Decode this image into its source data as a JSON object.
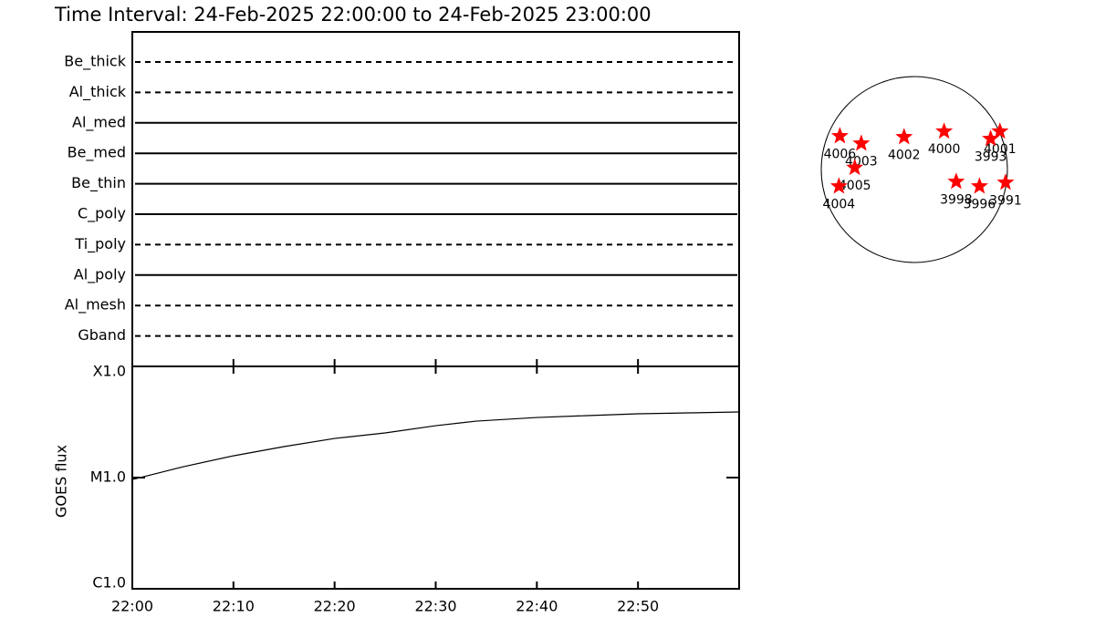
{
  "chart_data": [
    {
      "type": "timeline",
      "title": "Time Interval: 24-Feb-2025 22:00:00 to 24-Feb-2025 23:00:00",
      "filters": [
        {
          "name": "Be_thick",
          "style": "dashed"
        },
        {
          "name": "Al_thick",
          "style": "dashed"
        },
        {
          "name": "Al_med",
          "style": "solid"
        },
        {
          "name": "Be_med",
          "style": "solid"
        },
        {
          "name": "Be_thin",
          "style": "solid"
        },
        {
          "name": "C_poly",
          "style": "solid"
        },
        {
          "name": "Ti_poly",
          "style": "dashed"
        },
        {
          "name": "Al_poly",
          "style": "solid"
        },
        {
          "name": "Al_mesh",
          "style": "dashed"
        },
        {
          "name": "Gband",
          "style": "dashed"
        }
      ]
    },
    {
      "type": "line",
      "y_label": "GOES flux",
      "log_y": true,
      "color": "#000000",
      "x": [
        "22:00",
        "22:05",
        "22:10",
        "22:15",
        "22:20",
        "22:25",
        "22:30",
        "22:34",
        "22:40",
        "22:45",
        "22:50",
        "22:55",
        "23:00"
      ],
      "values": [
        9.6e-06,
        1.25e-05,
        1.57e-05,
        1.9e-05,
        2.25e-05,
        2.52e-05,
        2.93e-05,
        3.22e-05,
        3.47e-05,
        3.61e-05,
        3.75e-05,
        3.82e-05,
        3.89e-05
      ],
      "xlim": [
        "22:00",
        "23:00"
      ],
      "xticks": [
        "22:00",
        "22:10",
        "22:20",
        "22:30",
        "22:40",
        "22:50"
      ],
      "ylim": [
        1e-06,
        0.0001
      ],
      "yticks": [
        {
          "value": 1e-06,
          "label": "C1.0"
        },
        {
          "value": 1e-05,
          "label": "M1.0"
        },
        {
          "value": 0.0001,
          "label": "X1.0"
        }
      ]
    },
    {
      "type": "scatter",
      "color": "#ff0000",
      "xlim": [
        -1,
        1
      ],
      "ylim": [
        -1,
        1
      ],
      "points": [
        {
          "name": "4006",
          "x": -0.8,
          "y": 0.36
        },
        {
          "name": "4003",
          "x": -0.57,
          "y": 0.28
        },
        {
          "name": "4005",
          "x": -0.64,
          "y": 0.02
        },
        {
          "name": "4004",
          "x": -0.81,
          "y": -0.18
        },
        {
          "name": "4002",
          "x": -0.11,
          "y": 0.35
        },
        {
          "name": "4000",
          "x": 0.32,
          "y": 0.41
        },
        {
          "name": "4001",
          "x": 0.92,
          "y": 0.41
        },
        {
          "name": "3993",
          "x": 0.82,
          "y": 0.33
        },
        {
          "name": "3998",
          "x": 0.45,
          "y": -0.13
        },
        {
          "name": "3996",
          "x": 0.7,
          "y": -0.18
        },
        {
          "name": "3991",
          "x": 0.98,
          "y": -0.14
        }
      ]
    }
  ]
}
